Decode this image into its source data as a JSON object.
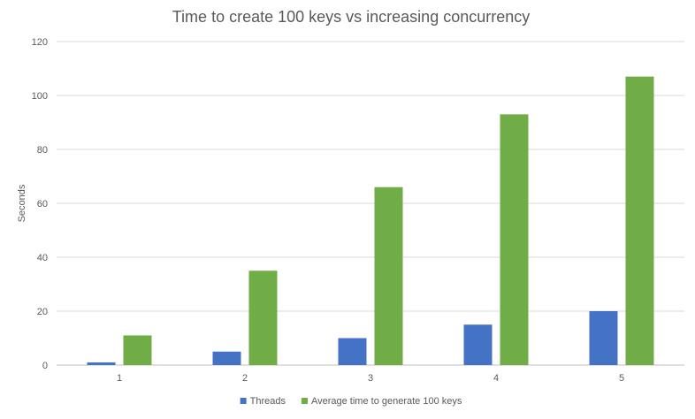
{
  "chart_data": {
    "type": "bar",
    "title": "Time to create 100 keys vs increasing concurrency",
    "xlabel": "",
    "ylabel": "Seconds",
    "categories": [
      "1",
      "2",
      "3",
      "4",
      "5"
    ],
    "series": [
      {
        "name": "Threads",
        "color": "#4472C4",
        "values": [
          1,
          5,
          10,
          15,
          20
        ]
      },
      {
        "name": "Average time to generate 100 keys",
        "color": "#70AD47",
        "values": [
          11,
          35,
          66,
          93,
          107
        ]
      }
    ],
    "ylim": [
      0,
      120
    ],
    "yticks": [
      0,
      20,
      40,
      60,
      80,
      100,
      120
    ],
    "grid": true,
    "legend": "bottom-center"
  }
}
